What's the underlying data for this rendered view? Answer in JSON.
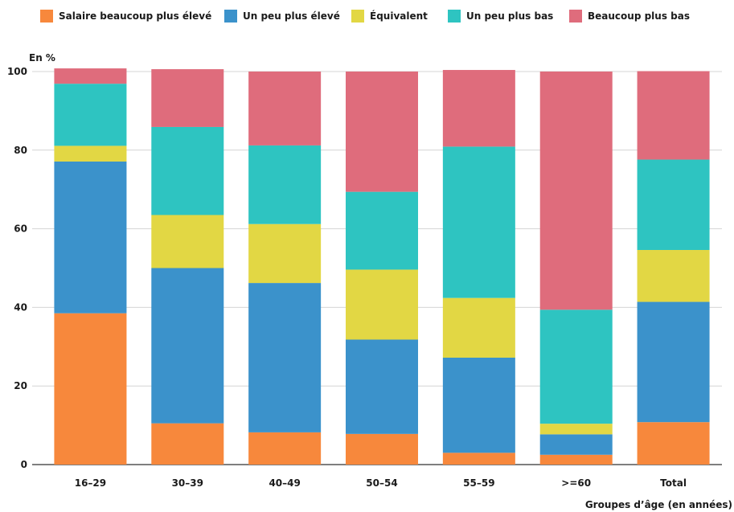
{
  "chart_data": {
    "type": "bar",
    "stacked": true,
    "title": "",
    "ylabel": "En %",
    "xlabel": "Groupes d’âge (en années)",
    "ylim": [
      0,
      100
    ],
    "yticks": [
      0,
      20,
      40,
      60,
      80,
      100
    ],
    "grid": true,
    "legend_position": "top",
    "categories": [
      "16–29",
      "30–39",
      "40–49",
      "50–54",
      "55–59",
      ">=60",
      "Total"
    ],
    "series": [
      {
        "name": "Salaire beaucoup plus élevé",
        "color": "#f7883c",
        "values": [
          38.5,
          10.5,
          8.2,
          7.8,
          3.0,
          2.5,
          10.8
        ]
      },
      {
        "name": "Un peu plus élevé",
        "color": "#3b92cb",
        "values": [
          38.6,
          39.5,
          38.0,
          24.0,
          24.2,
          5.2,
          30.6
        ]
      },
      {
        "name": "Équivalent",
        "color": "#e2d744",
        "values": [
          4.0,
          13.5,
          15.0,
          17.8,
          15.2,
          2.7,
          13.2
        ]
      },
      {
        "name": "Un peu plus bas",
        "color": "#2ec4c1",
        "values": [
          15.8,
          22.4,
          20.0,
          19.8,
          38.5,
          29.0,
          23.0
        ]
      },
      {
        "name": "Beaucoup plus bas",
        "color": "#df6c7c",
        "values": [
          3.9,
          14.7,
          18.8,
          30.6,
          19.5,
          60.6,
          22.5
        ]
      }
    ]
  }
}
